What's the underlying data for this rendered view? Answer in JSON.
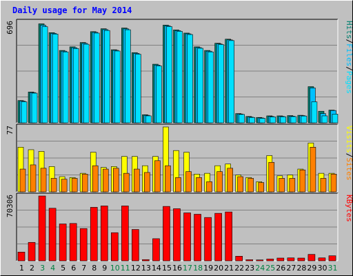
{
  "colors": {
    "background": "#c0c0c0",
    "panel": "#c0c0c0",
    "title": "#0000ff",
    "weekend_day": "#008040",
    "weekday_day": "#000000",
    "hits": "#008070",
    "files": "#00c0ff",
    "pages": "#00e0ff",
    "visits": "#ffff00",
    "sites": "#ff8000",
    "kbytes": "#ff0000"
  },
  "chart_data": {
    "type": "bar",
    "title": "Daily usage for May 2014",
    "categories": [
      "1",
      "2",
      "3",
      "4",
      "5",
      "6",
      "7",
      "8",
      "9",
      "10",
      "11",
      "12",
      "13",
      "14",
      "15",
      "16",
      "17",
      "18",
      "19",
      "20",
      "21",
      "22",
      "23",
      "24",
      "25",
      "26",
      "27",
      "28",
      "29",
      "30",
      "31"
    ],
    "weekend_days": [
      "3",
      "4",
      "10",
      "11",
      "17",
      "18",
      "24",
      "25",
      "31"
    ],
    "panels": [
      {
        "name": "hits_files_pages",
        "max_label": "696",
        "ylim": [
          0,
          696
        ],
        "legend": [
          "Pages",
          "/",
          "Files",
          "/",
          "Hits"
        ],
        "series": [
          {
            "name": "Hits",
            "values": [
              154,
              213,
              684,
              623,
              500,
              525,
              555,
              630,
              650,
              505,
              655,
              485,
              56,
              405,
              675,
              642,
              620,
              525,
              500,
              550,
              578,
              64,
              44,
              37,
              48,
              48,
              50,
              52,
              250,
              80,
              88
            ]
          },
          {
            "name": "Files",
            "values": [
              150,
              209,
              674,
              618,
              495,
              519,
              549,
              625,
              644,
              501,
              649,
              480,
              52,
              399,
              670,
              637,
              615,
              520,
              495,
              545,
              573,
              61,
              40,
              34,
              44,
              45,
              46,
              50,
              241,
              64,
              85
            ]
          },
          {
            "name": "Pages",
            "values": [
              145,
              205,
              664,
              613,
              490,
              513,
              543,
              620,
              638,
              496,
              643,
              474,
              48,
              393,
              665,
              632,
              610,
              515,
              490,
              540,
              568,
              58,
              37,
              31,
              41,
              42,
              43,
              47,
              145,
              48,
              60
            ]
          }
        ]
      },
      {
        "name": "visits_sites",
        "max_label": "77",
        "ylim": [
          0,
          77
        ],
        "legend": [
          "Sites",
          "/",
          "Visits"
        ],
        "series": [
          {
            "name": "Visits",
            "values": [
              53,
              50,
              48,
              30,
              18,
              17,
              22,
              47,
              29,
              30,
              42,
              42,
              31,
              42,
              77,
              49,
              47,
              21,
              22,
              31,
              33,
              20,
              17,
              12,
              43,
              19,
              20,
              27,
              58,
              22,
              22
            ]
          },
          {
            "name": "Sites",
            "values": [
              27,
              32,
              28,
              16,
              15,
              16,
              21,
              31,
              27,
              28,
              22,
              27,
              23,
              37,
              31,
              17,
              24,
              17,
              12,
              24,
              28,
              18,
              16,
              11,
              35,
              16,
              16,
              26,
              53,
              16,
              21
            ]
          }
        ]
      },
      {
        "name": "kbytes",
        "max_label": "70306",
        "ylim": [
          0,
          70306
        ],
        "legend": [
          "KBytes"
        ],
        "series": [
          {
            "name": "KBytes",
            "values": [
              9500,
              20000,
              70306,
              57000,
              40000,
              40500,
              35000,
              58000,
              59500,
              30500,
              59500,
              34000,
              1300,
              24000,
              59000,
              56500,
              52000,
              50500,
              47000,
              51500,
              53000,
              5000,
              1200,
              1000,
              2000,
              3000,
              3200,
              3000,
              7000,
              3200,
              5500
            ]
          }
        ]
      }
    ]
  }
}
